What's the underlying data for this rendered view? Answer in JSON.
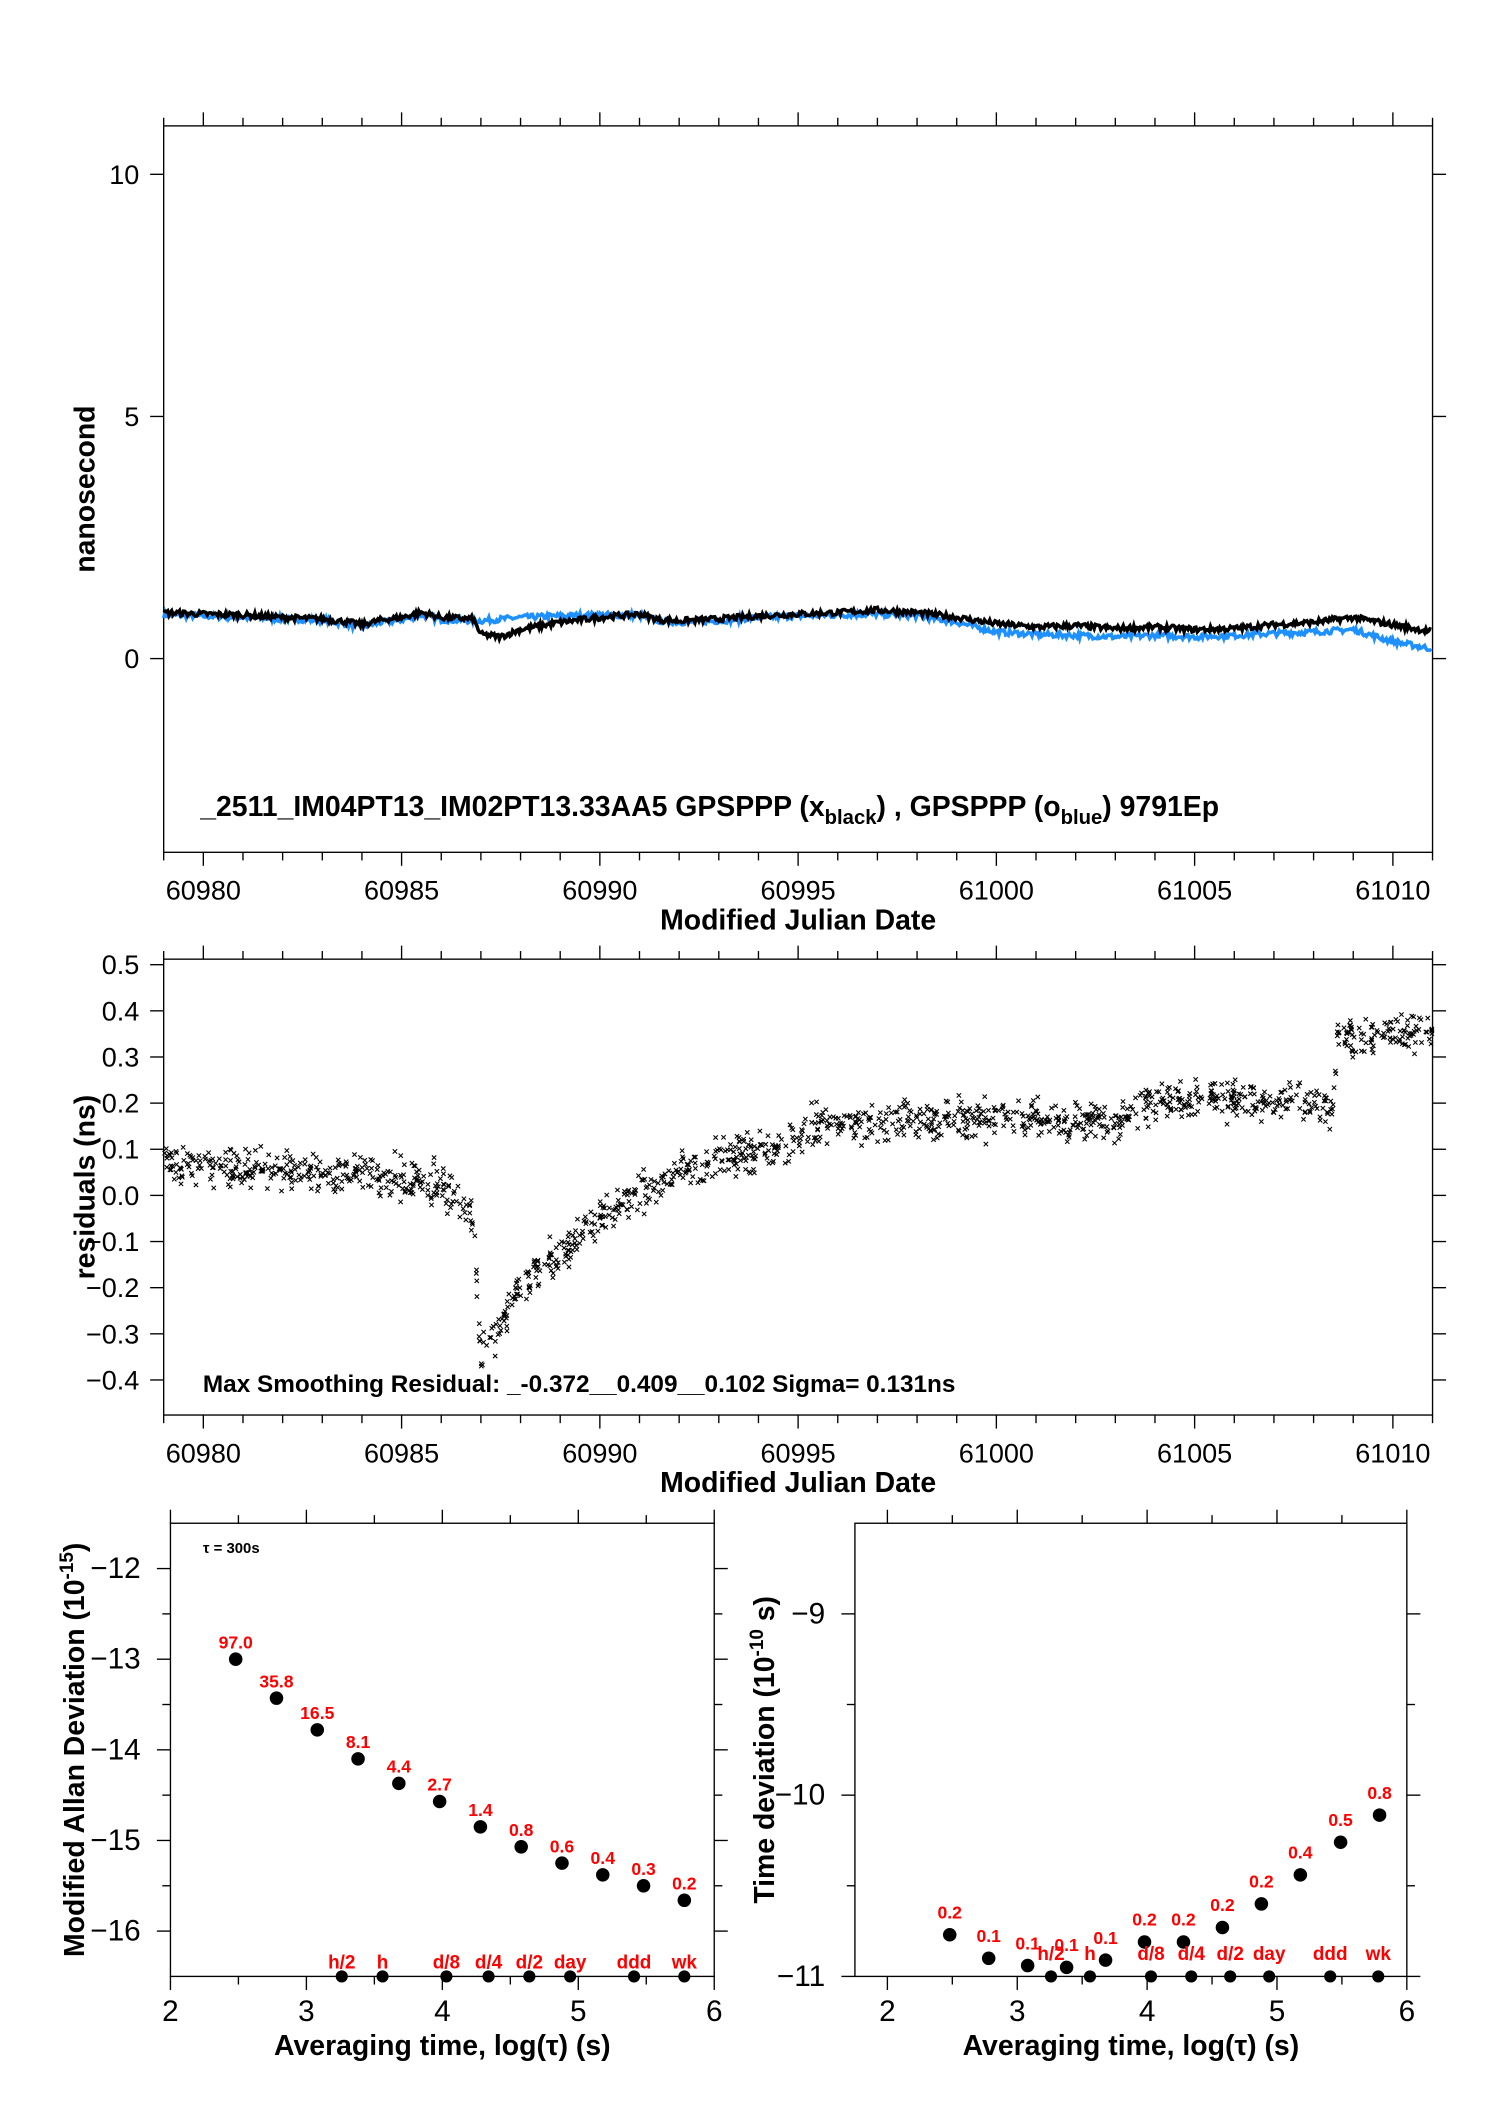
{
  "chart_data": [
    {
      "id": "p1",
      "type": "line",
      "xlabel": "Modified Julian Date",
      "ylabel": "nanosecond",
      "xlim": [
        60979,
        61011
      ],
      "ylim": [
        -4,
        11
      ],
      "xticks": [
        60980,
        60985,
        60990,
        60995,
        61000,
        61005,
        61010
      ],
      "xtick_labels": [
        "60980",
        "60985",
        "60990",
        "60995",
        "61000",
        "61005",
        "61010"
      ],
      "yticks": [
        0,
        5,
        10
      ],
      "ytick_labels": [
        "0",
        "5",
        "10"
      ],
      "title_parts": {
        "prefix": "_2511_IM04PT13_IM02PT13.33AA5    GPSPPP (x",
        "sub1": "black",
        "mid": ") ,  GPSPPP (o",
        "sub2": "blue",
        "suffix": ")  9791Ep"
      },
      "series": [
        {
          "name": "GPSPPP x black",
          "color": "#000000",
          "points": [
            [
              60979,
              0.95
            ],
            [
              60980,
              0.92
            ],
            [
              60981,
              0.9
            ],
            [
              60982,
              0.85
            ],
            [
              60983,
              0.82
            ],
            [
              60983.7,
              0.75
            ],
            [
              60984,
              0.7
            ],
            [
              60984.5,
              0.8
            ],
            [
              60985,
              0.85
            ],
            [
              60985.5,
              0.95
            ],
            [
              60986,
              0.85
            ],
            [
              60986.8,
              0.82
            ],
            [
              60987,
              0.5
            ],
            [
              60987.5,
              0.45
            ],
            [
              60988,
              0.6
            ],
            [
              60989,
              0.75
            ],
            [
              60990,
              0.85
            ],
            [
              60991,
              0.92
            ],
            [
              60991.5,
              0.8
            ],
            [
              60992,
              0.78
            ],
            [
              60993,
              0.82
            ],
            [
              60994,
              0.88
            ],
            [
              60995,
              0.92
            ],
            [
              60996,
              0.95
            ],
            [
              60997,
              1.0
            ],
            [
              60998,
              0.95
            ],
            [
              60999,
              0.85
            ],
            [
              61000,
              0.72
            ],
            [
              61001,
              0.65
            ],
            [
              61002,
              0.68
            ],
            [
              61003,
              0.62
            ],
            [
              61004,
              0.65
            ],
            [
              61005,
              0.6
            ],
            [
              61006,
              0.62
            ],
            [
              61007,
              0.7
            ],
            [
              61008,
              0.75
            ],
            [
              61009,
              0.85
            ],
            [
              61010,
              0.7
            ],
            [
              61011,
              0.55
            ]
          ]
        },
        {
          "name": "GPSPPP o blue",
          "color": "#1e90ff",
          "points": [
            [
              60979,
              0.9
            ],
            [
              60980,
              0.88
            ],
            [
              60981,
              0.85
            ],
            [
              60982,
              0.82
            ],
            [
              60983,
              0.8
            ],
            [
              60983.7,
              0.7
            ],
            [
              60984,
              0.65
            ],
            [
              60984.5,
              0.75
            ],
            [
              60985,
              0.8
            ],
            [
              60985.5,
              0.9
            ],
            [
              60986,
              0.8
            ],
            [
              60987,
              0.78
            ],
            [
              60988,
              0.85
            ],
            [
              60989,
              0.88
            ],
            [
              60990,
              0.9
            ],
            [
              60991,
              0.9
            ],
            [
              60991.5,
              0.78
            ],
            [
              60992,
              0.75
            ],
            [
              60993,
              0.78
            ],
            [
              60994,
              0.85
            ],
            [
              60995,
              0.88
            ],
            [
              60996,
              0.9
            ],
            [
              60997,
              0.92
            ],
            [
              60998,
              0.88
            ],
            [
              60999,
              0.75
            ],
            [
              61000,
              0.55
            ],
            [
              61001,
              0.5
            ],
            [
              61002,
              0.48
            ],
            [
              61003,
              0.45
            ],
            [
              61004,
              0.48
            ],
            [
              61005,
              0.45
            ],
            [
              61006,
              0.48
            ],
            [
              61007,
              0.52
            ],
            [
              61008,
              0.55
            ],
            [
              61009,
              0.6
            ],
            [
              61010,
              0.35
            ],
            [
              61011,
              0.2
            ]
          ]
        }
      ]
    },
    {
      "id": "p2",
      "type": "scatter",
      "xlabel": "Modified Julian Date",
      "ylabel": "residuals (ns)",
      "xlim": [
        60979,
        61011
      ],
      "ylim": [
        -0.476,
        0.512
      ],
      "xticks": [
        60980,
        60985,
        60990,
        60995,
        61000,
        61005,
        61010
      ],
      "xtick_labels": [
        "60980",
        "60985",
        "60990",
        "60995",
        "61000",
        "61005",
        "61010"
      ],
      "yticks": [
        -0.4,
        -0.3,
        -0.2,
        -0.1,
        0,
        0.1,
        0.2,
        0.3,
        0.4,
        0.5
      ],
      "ytick_labels": [
        "−0.4",
        "−0.3",
        "−0.2",
        "−0.1",
        "0.0",
        "0.1",
        "0.2",
        "0.3",
        "0.4",
        "0.5"
      ],
      "annotation": "Max Smoothing Residual: _-0.372__0.409__0.102  Sigma= 0.131ns",
      "trend": [
        [
          60979,
          0.07
        ],
        [
          60983,
          0.05
        ],
        [
          60986,
          0.03
        ],
        [
          60986.8,
          -0.05
        ],
        [
          60987,
          -0.35
        ],
        [
          60988,
          -0.2
        ],
        [
          60990,
          -0.05
        ],
        [
          60992,
          0.05
        ],
        [
          60995,
          0.12
        ],
        [
          60995.2,
          0.15
        ],
        [
          61000,
          0.17
        ],
        [
          61003,
          0.16
        ],
        [
          61004,
          0.21
        ],
        [
          61008.5,
          0.2
        ],
        [
          61008.6,
          0.34
        ],
        [
          61011,
          0.35
        ]
      ],
      "spread": 0.035,
      "marker": "x"
    },
    {
      "id": "p3",
      "type": "scatter",
      "xlabel": "Averaging time, log(τ) (s)",
      "ylabel": "Modified Allan Deviation (10",
      "ylabel_sup": "-15",
      "ylabel_end": ")",
      "note": "τ = 300s",
      "xlim": [
        2,
        6
      ],
      "ylim": [
        -16.5,
        -11.5
      ],
      "xticks": [
        2,
        3,
        4,
        5,
        6
      ],
      "xtick_labels": [
        "2",
        "3",
        "4",
        "5",
        "6"
      ],
      "yticks": [
        -12,
        -13,
        -14,
        -15,
        -16
      ],
      "ytick_labels": [
        "−12",
        "−13",
        "−14",
        "−15",
        "−16"
      ],
      "points": [
        [
          2.48,
          -13.0
        ],
        [
          2.78,
          -13.43
        ],
        [
          3.08,
          -13.78
        ],
        [
          3.38,
          -14.1
        ],
        [
          3.68,
          -14.37
        ],
        [
          3.98,
          -14.57
        ],
        [
          4.28,
          -14.85
        ],
        [
          4.58,
          -15.07
        ],
        [
          4.88,
          -15.25
        ],
        [
          5.18,
          -15.38
        ],
        [
          5.48,
          -15.5
        ],
        [
          5.78,
          -15.66
        ]
      ],
      "point_labels": [
        "97.0",
        "35.8",
        "16.5",
        "8.1",
        "4.4",
        "2.7",
        "1.4",
        "0.8",
        "0.6",
        "0.4",
        "0.3",
        "0.2"
      ],
      "markers": [
        [
          3.26,
          "h/2"
        ],
        [
          3.56,
          "h"
        ],
        [
          4.03,
          "d/8"
        ],
        [
          4.34,
          "d/4"
        ],
        [
          4.64,
          "d/2"
        ],
        [
          4.94,
          "day"
        ],
        [
          5.41,
          "ddd"
        ],
        [
          5.78,
          "wk"
        ]
      ]
    },
    {
      "id": "p4",
      "type": "scatter",
      "xlabel": "Averaging time, log(τ) (s)",
      "ylabel": "Time deviation (10",
      "ylabel_sup": "-10",
      "ylabel_end": " s)",
      "xlim": [
        1.75,
        6
      ],
      "ylim": [
        -11,
        -8.5
      ],
      "xticks": [
        2,
        3,
        4,
        5,
        6
      ],
      "xtick_labels": [
        "2",
        "3",
        "4",
        "5",
        "6"
      ],
      "yticks": [
        -9,
        -10,
        -11
      ],
      "ytick_labels": [
        "−9",
        "−10",
        "−11"
      ],
      "points": [
        [
          2.48,
          -10.77
        ],
        [
          2.78,
          -10.9
        ],
        [
          3.08,
          -10.94
        ],
        [
          3.38,
          -10.95
        ],
        [
          3.68,
          -10.91
        ],
        [
          3.98,
          -10.81
        ],
        [
          4.28,
          -10.81
        ],
        [
          4.58,
          -10.73
        ],
        [
          4.88,
          -10.6
        ],
        [
          5.18,
          -10.44
        ],
        [
          5.49,
          -10.26
        ],
        [
          5.79,
          -10.11
        ]
      ],
      "point_labels": [
        "0.2",
        "0.1",
        "0.1",
        "0.1",
        "0.1",
        "0.2",
        "0.2",
        "0.2",
        "0.2",
        "0.4",
        "0.5",
        "0.8"
      ],
      "markers": [
        [
          3.26,
          "h/2"
        ],
        [
          3.56,
          "h"
        ],
        [
          4.03,
          "d/8"
        ],
        [
          4.34,
          "d/4"
        ],
        [
          4.64,
          "d/2"
        ],
        [
          4.94,
          "day"
        ],
        [
          5.41,
          "ddd"
        ],
        [
          5.78,
          "wk"
        ]
      ]
    }
  ]
}
